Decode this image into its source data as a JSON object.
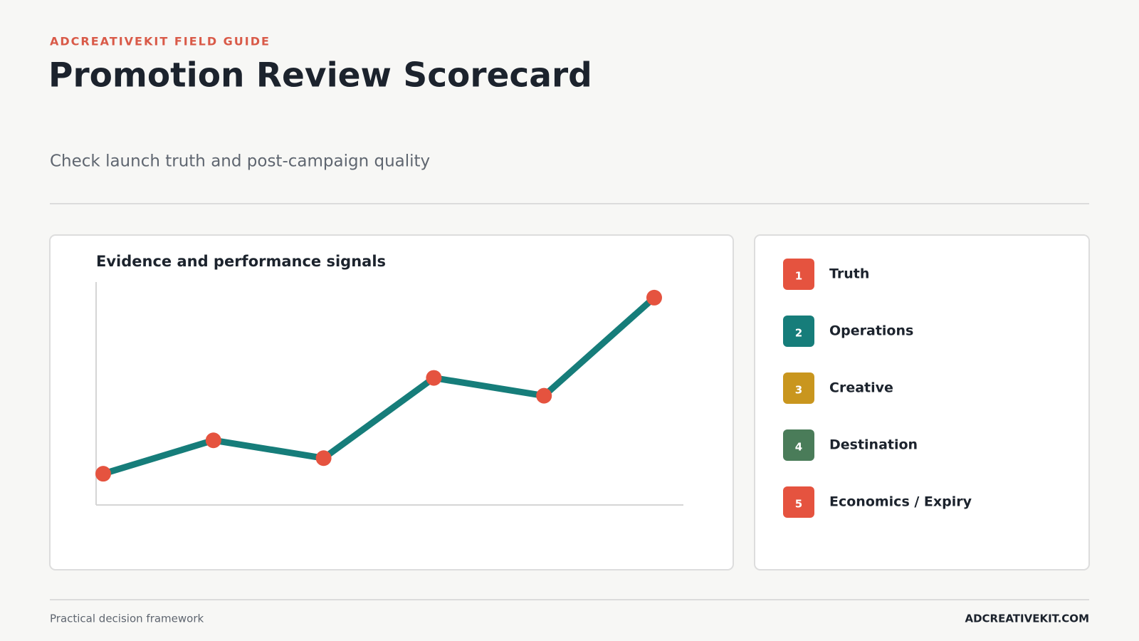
{
  "eyebrow": "ADCREATIVEKIT FIELD GUIDE",
  "title": "Promotion Review Scorecard",
  "subtitle": "Check launch truth and post-campaign quality",
  "chart_data": {
    "type": "line",
    "title": "Evidence and performance signals",
    "categories": [
      null,
      null,
      null,
      null,
      null,
      null
    ],
    "values": [
      14,
      29,
      21,
      57,
      49,
      93
    ],
    "ylim": [
      0,
      100
    ],
    "color": "#167d7a",
    "marker_color": "#e5533f"
  },
  "steps": [
    {
      "number": 1,
      "label": "Truth",
      "color": "#e5533f"
    },
    {
      "number": 2,
      "label": "Operations",
      "color": "#167d7a"
    },
    {
      "number": 3,
      "label": "Creative",
      "color": "#c9961e"
    },
    {
      "number": 4,
      "label": "Destination",
      "color": "#4a7c59"
    },
    {
      "number": 5,
      "label": "Economics / Expiry",
      "color": "#e5533f"
    }
  ],
  "footer": {
    "left": "Practical decision framework",
    "right": "ADCREATIVEKIT.COM"
  }
}
